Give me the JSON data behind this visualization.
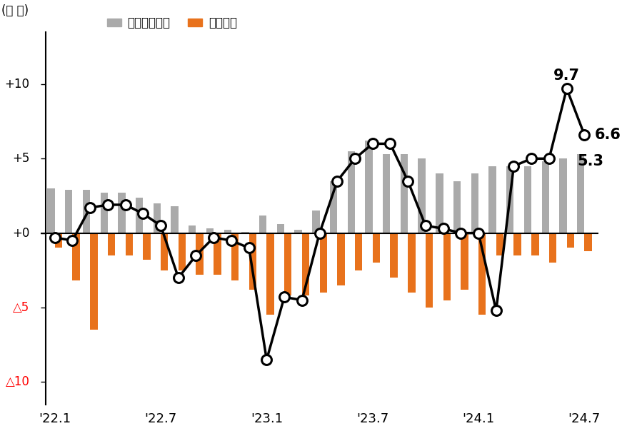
{
  "title_unit": "(조 원)",
  "legend_items": [
    "주택담보대출",
    "기타대출"
  ],
  "bar_color_housing": "#aaaaaa",
  "bar_color_other": "#e8721c",
  "line_color": "#000000",
  "background_color": "#ffffff",
  "xtick_labels": [
    "'22.1",
    "'22.7",
    "'23.1",
    "'23.7",
    "'24.1",
    "'24.7"
  ],
  "xtick_positions": [
    0,
    6,
    12,
    18,
    24,
    30
  ],
  "ylim": [
    -11.5,
    13.5
  ],
  "housing_loan": [
    3.0,
    2.9,
    2.9,
    2.7,
    2.7,
    2.4,
    2.0,
    1.8,
    0.5,
    0.3,
    0.2,
    0.1,
    1.2,
    0.6,
    0.2,
    1.5,
    3.5,
    5.5,
    6.2,
    5.3,
    5.3,
    5.0,
    4.0,
    3.5,
    4.0,
    4.5,
    4.5,
    4.5,
    4.8,
    5.0,
    5.3
  ],
  "other_loan": [
    -1.0,
    -3.2,
    -6.5,
    -1.5,
    -1.5,
    -1.8,
    -2.5,
    -2.5,
    -2.8,
    -2.8,
    -3.2,
    -3.8,
    -5.5,
    -4.2,
    -4.2,
    -4.0,
    -3.5,
    -2.5,
    -2.0,
    -3.0,
    -4.0,
    -5.0,
    -4.5,
    -3.8,
    -5.5,
    -1.5,
    -1.5,
    -1.5,
    -2.0,
    -1.0,
    -1.2
  ],
  "line_values": [
    -0.3,
    -0.5,
    1.7,
    1.9,
    1.9,
    1.3,
    0.5,
    -3.0,
    -1.5,
    -0.3,
    -0.5,
    -1.0,
    -8.5,
    -4.3,
    -4.5,
    0.0,
    3.5,
    5.0,
    6.0,
    6.0,
    3.5,
    0.5,
    0.3,
    0.0,
    0.0,
    -5.2,
    4.5,
    5.0,
    5.0,
    9.7,
    6.6
  ]
}
